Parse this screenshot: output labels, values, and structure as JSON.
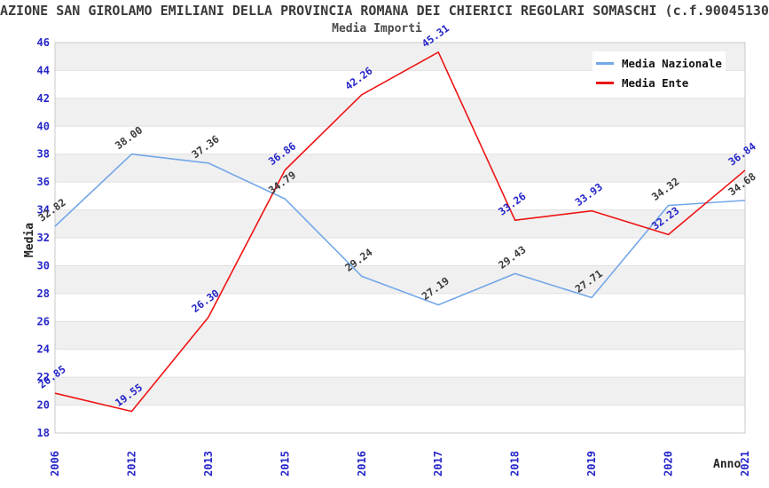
{
  "header": {
    "title": "AZIONE SAN GIROLAMO EMILIANI DELLA PROVINCIA ROMANA DEI CHIERICI REGOLARI SOMASCHI (c.f.90045130",
    "subtitle": "Media Importi"
  },
  "chart_data": {
    "type": "line",
    "title": "Media Importi",
    "xlabel": "Anno",
    "ylabel": "Media",
    "categories": [
      "2006",
      "2012",
      "2013",
      "2015",
      "2016",
      "2017",
      "2018",
      "2019",
      "2020",
      "2021"
    ],
    "series": [
      {
        "name": "Media Nazionale",
        "color": "#74a7e8",
        "label_color": "#3a3a3a",
        "values": [
          32.82,
          38.0,
          37.36,
          34.79,
          29.24,
          27.19,
          29.43,
          27.71,
          34.32,
          34.68
        ]
      },
      {
        "name": "Media Ente",
        "color": "#ee1414",
        "label_color": "#2525c8",
        "values": [
          20.85,
          19.55,
          26.3,
          36.86,
          42.26,
          45.31,
          33.26,
          33.93,
          32.23,
          36.84
        ]
      }
    ],
    "ylim": [
      18,
      46
    ],
    "ytick_step": 2,
    "yticks": [
      18,
      20,
      22,
      24,
      26,
      28,
      30,
      32,
      34,
      36,
      38,
      40,
      42,
      44,
      46
    ],
    "grid": "horizontal",
    "legend_position": "top-right",
    "value_label_decimals": 2,
    "styles": {
      "tick_color": "#2525c8",
      "band_fill": "#f0f0f0",
      "grid_color": "#e0e0e0",
      "border_color": "#c8c8c8",
      "plot_bg": "#ffffff"
    }
  }
}
